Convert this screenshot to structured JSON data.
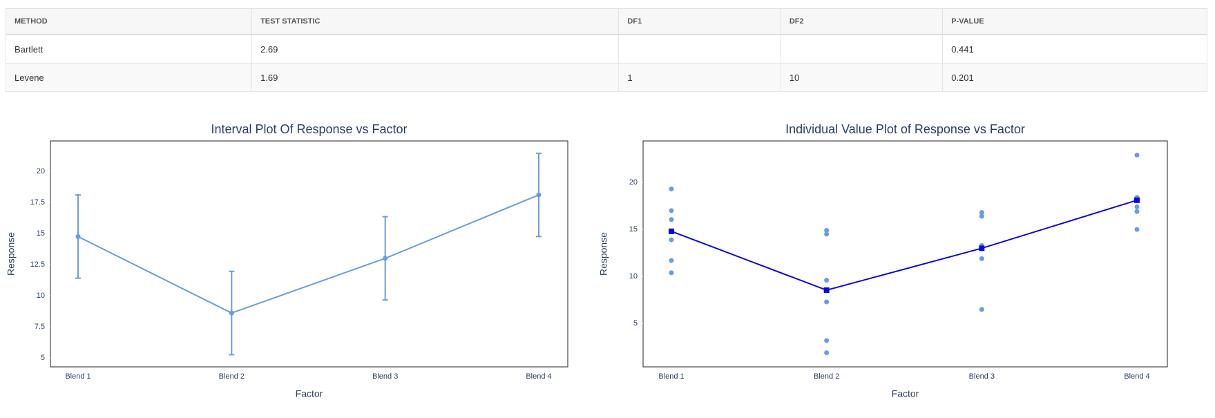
{
  "table": {
    "headers": [
      "METHOD",
      "TEST STATISTIC",
      "DF1",
      "DF2",
      "P-VALUE"
    ],
    "rows": [
      [
        "Bartlett",
        2.69,
        null,
        null,
        0.441
      ],
      [
        "Levene",
        1.69,
        1,
        10,
        0.201
      ]
    ]
  },
  "chart_data": [
    {
      "type": "interval",
      "title": "Interval Plot Of Response vs Factor",
      "x_label": "Factor",
      "y_label": "Response",
      "categories": [
        "Blend 1",
        "Blend 2",
        "Blend 3",
        "Blend 4"
      ],
      "values": [
        14.75,
        8.6,
        13.0,
        18.1
      ],
      "errors": [
        3.35,
        3.35,
        3.35,
        3.35
      ],
      "color": "#6b9be3",
      "ylim": [
        4.27,
        22.44
      ],
      "yticks": [
        5,
        7.5,
        10,
        12.5,
        15,
        17.5,
        20
      ]
    },
    {
      "type": "individual",
      "title": "Individual Value Plot of Response vs Factor",
      "x_label": "Factor",
      "y_label": "Response",
      "categories": [
        "Blend 1",
        "Blend 2",
        "Blend 3",
        "Blend 4"
      ],
      "points": [
        [
          19.3,
          17.0,
          16.05,
          13.9,
          11.7,
          10.4
        ],
        [
          14.9,
          14.5,
          9.6,
          7.3,
          3.2,
          1.9
        ],
        [
          16.8,
          16.4,
          13.3,
          13.0,
          11.9,
          6.5
        ],
        [
          22.9,
          18.4,
          18.1,
          17.4,
          16.9,
          15.0
        ]
      ],
      "values": [
        14.8,
        8.55,
        13.0,
        18.1
      ],
      "point_color": "#6b9be3",
      "mean_color": "#0a0ad6",
      "ylim": [
        0.4,
        24.4
      ],
      "yticks": [
        5,
        10,
        15,
        20
      ]
    }
  ]
}
